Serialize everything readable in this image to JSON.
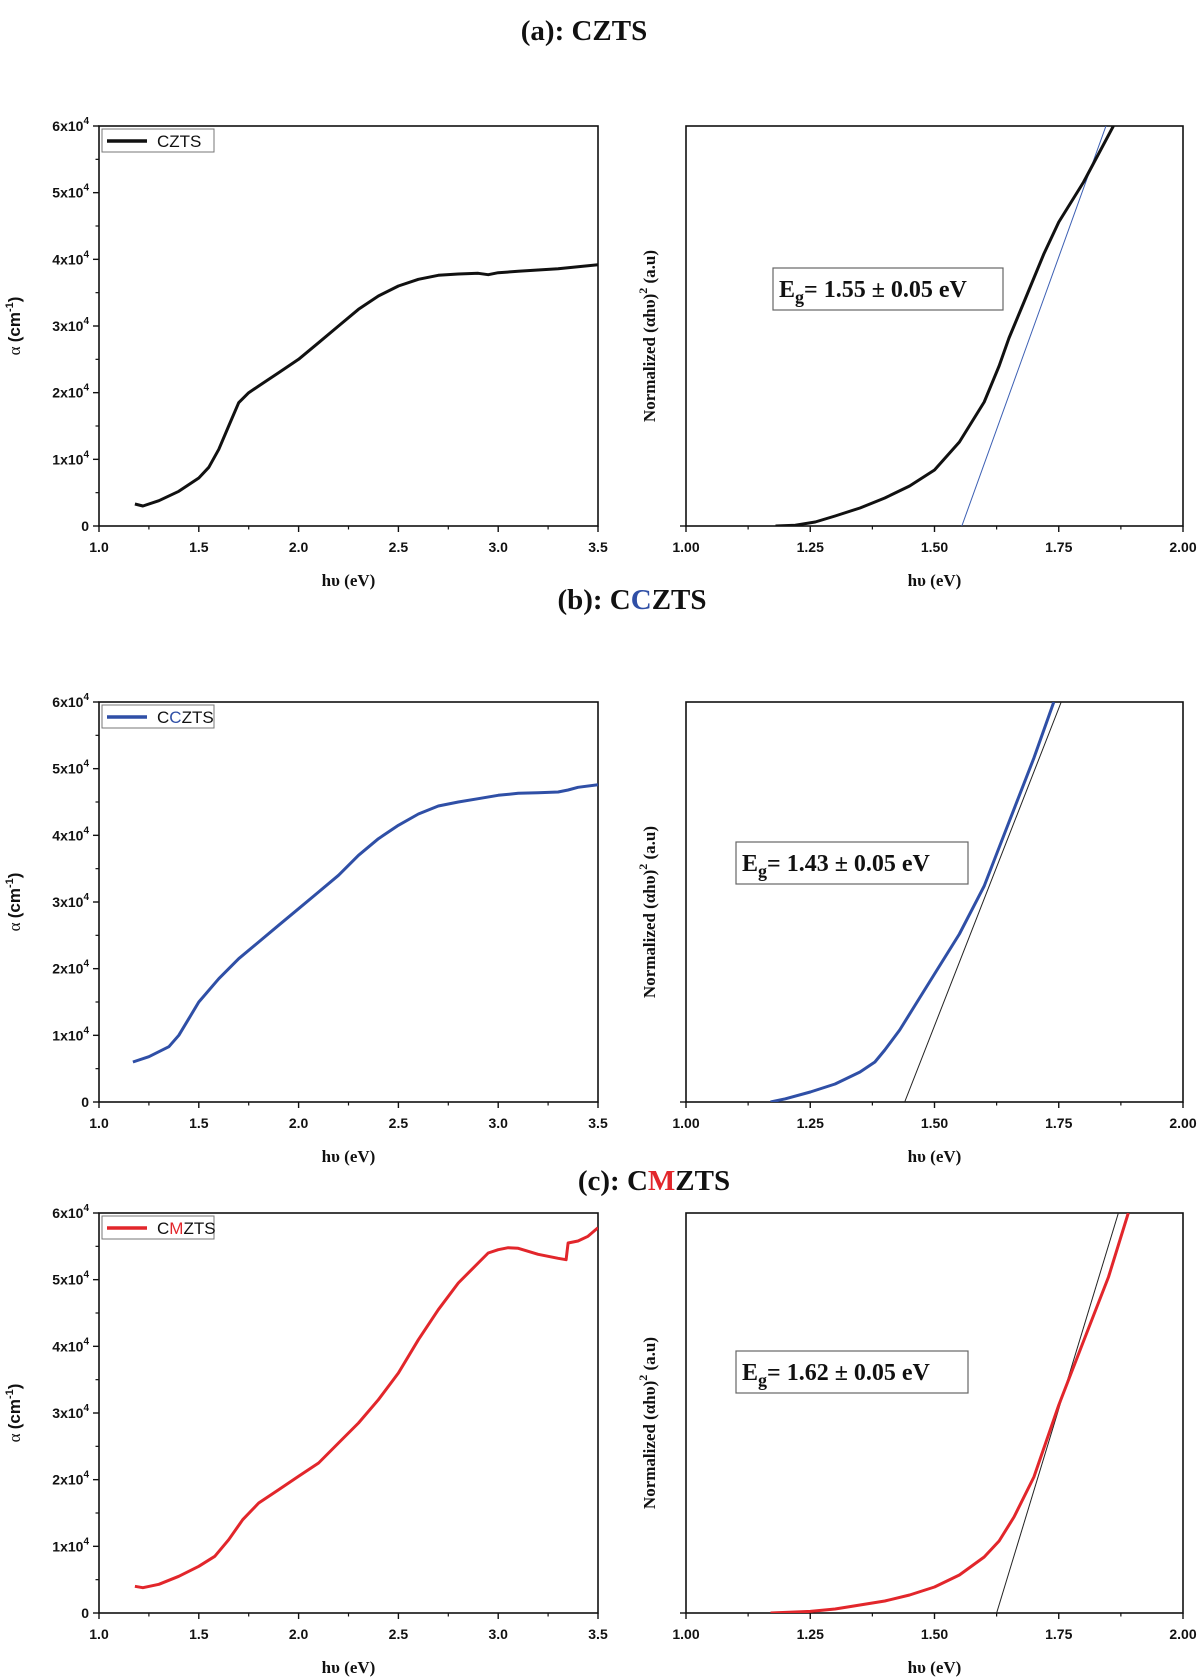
{
  "colors": {
    "a": "#111111",
    "b": "#2f4fa6",
    "c": "#e2262b",
    "axis": "#111111"
  },
  "panels": [
    {
      "title_prefix": "(a): C",
      "title_highlight": "",
      "title_suffix": "ZTS",
      "legend_prefix": "C",
      "legend_highlight": "",
      "legend_suffix": "ZTS",
      "eg_main": "E",
      "eg_sub": "g",
      "eg_value": "= 1.55 ± 0.05 eV"
    },
    {
      "title_prefix": "(b): C",
      "title_highlight": "C",
      "title_suffix": "ZTS",
      "legend_prefix": "C",
      "legend_highlight": "C",
      "legend_suffix": "ZTS",
      "eg_main": "E",
      "eg_sub": "g",
      "eg_value": "= 1.43 ± 0.05 eV"
    },
    {
      "title_prefix": "(c): C",
      "title_highlight": "M",
      "title_suffix": "ZTS",
      "legend_prefix": "C",
      "legend_highlight": "M",
      "legend_suffix": "ZTS",
      "eg_main": "E",
      "eg_sub": "g",
      "eg_value": "= 1.62 ± 0.05 eV"
    }
  ],
  "axis_labels": {
    "left_x": "hυ (eV)",
    "left_y_sym": "α",
    "left_y_unit": "(cm",
    "left_y_exp": "-1",
    "left_y_close": ")",
    "right_x": "hυ (eV)",
    "right_y": "Normalized (αhυ)",
    "right_y_exp": "2",
    "right_y_unit": "(a.u)"
  },
  "chart_data": [
    {
      "type": "line",
      "panel": "a-absorption",
      "xlim": [
        1.0,
        3.5
      ],
      "ylim": [
        0,
        60000
      ],
      "x_ticks": [
        "1.0",
        "1.5",
        "2.0",
        "2.5",
        "3.0",
        "3.5"
      ],
      "y_ticks": [
        "0",
        "1x10",
        "2x10",
        "3x10",
        "4x10",
        "5x10",
        "6x10"
      ],
      "y_tick_exp": "4",
      "legend": "top-left",
      "series": [
        {
          "name": "CZTS",
          "x": [
            1.18,
            1.22,
            1.3,
            1.4,
            1.5,
            1.55,
            1.6,
            1.65,
            1.7,
            1.75,
            1.8,
            1.9,
            2.0,
            2.1,
            2.2,
            2.3,
            2.4,
            2.5,
            2.6,
            2.7,
            2.8,
            2.9,
            2.95,
            3.0,
            3.1,
            3.2,
            3.3,
            3.4,
            3.5
          ],
          "y": [
            3300,
            3000,
            3800,
            5200,
            7200,
            8800,
            11500,
            15000,
            18500,
            20000,
            21000,
            23000,
            25000,
            27500,
            30000,
            32500,
            34500,
            36000,
            37000,
            37600,
            37800,
            37900,
            37700,
            38000,
            38200,
            38400,
            38600,
            38900,
            39200
          ]
        }
      ]
    },
    {
      "type": "line",
      "panel": "a-tauc",
      "xlim": [
        1.0,
        2.0
      ],
      "ylim": [
        0,
        1
      ],
      "x_ticks": [
        "1.00",
        "1.25",
        "1.50",
        "1.75",
        "2.00"
      ],
      "series": [
        {
          "name": "CZTS",
          "x": [
            1.18,
            1.22,
            1.26,
            1.3,
            1.35,
            1.4,
            1.45,
            1.5,
            1.55,
            1.6,
            1.63,
            1.65,
            1.68,
            1.7,
            1.72,
            1.75,
            1.78,
            1.8,
            1.83,
            1.86
          ],
          "y": [
            0,
            0.002,
            0.01,
            0.025,
            0.045,
            0.07,
            0.1,
            0.14,
            0.21,
            0.31,
            0.4,
            0.47,
            0.56,
            0.62,
            0.68,
            0.76,
            0.82,
            0.86,
            0.93,
            1.0
          ]
        }
      ],
      "fit_line": {
        "x": [
          1.555,
          1.845
        ],
        "y": [
          0,
          1.0
        ]
      }
    },
    {
      "type": "line",
      "panel": "b-absorption",
      "xlim": [
        1.0,
        3.5
      ],
      "ylim": [
        0,
        60000
      ],
      "x_ticks": [
        "1.0",
        "1.5",
        "2.0",
        "2.5",
        "3.0",
        "3.5"
      ],
      "y_ticks": [
        "0",
        "1x10",
        "2x10",
        "3x10",
        "4x10",
        "5x10",
        "6x10"
      ],
      "y_tick_exp": "4",
      "legend": "top-left",
      "series": [
        {
          "name": "CCZTS",
          "x": [
            1.17,
            1.25,
            1.35,
            1.4,
            1.45,
            1.5,
            1.6,
            1.7,
            1.8,
            1.9,
            2.0,
            2.1,
            2.2,
            2.3,
            2.4,
            2.5,
            2.6,
            2.7,
            2.8,
            2.9,
            3.0,
            3.1,
            3.2,
            3.3,
            3.35,
            3.4,
            3.5
          ],
          "y": [
            6000,
            6800,
            8300,
            10000,
            12500,
            15000,
            18500,
            21500,
            24000,
            26500,
            29000,
            31500,
            34000,
            37000,
            39500,
            41500,
            43200,
            44400,
            45000,
            45500,
            46000,
            46300,
            46400,
            46500,
            46800,
            47200,
            47600
          ]
        }
      ]
    },
    {
      "type": "line",
      "panel": "b-tauc",
      "xlim": [
        1.0,
        2.0
      ],
      "ylim": [
        0,
        1
      ],
      "x_ticks": [
        "1.00",
        "1.25",
        "1.50",
        "1.75",
        "2.00"
      ],
      "series": [
        {
          "name": "CCZTS",
          "x": [
            1.17,
            1.2,
            1.25,
            1.3,
            1.35,
            1.38,
            1.4,
            1.43,
            1.46,
            1.5,
            1.55,
            1.6,
            1.65,
            1.7,
            1.74
          ],
          "y": [
            0,
            0.008,
            0.025,
            0.045,
            0.075,
            0.1,
            0.13,
            0.18,
            0.24,
            0.32,
            0.42,
            0.54,
            0.7,
            0.86,
            1.0
          ]
        }
      ],
      "fit_line": {
        "x": [
          1.44,
          1.755
        ],
        "y": [
          0,
          1.0
        ]
      }
    },
    {
      "type": "line",
      "panel": "c-absorption",
      "xlim": [
        1.0,
        3.5
      ],
      "ylim": [
        0,
        60000
      ],
      "x_ticks": [
        "1.0",
        "1.5",
        "2.0",
        "2.5",
        "3.0",
        "3.5"
      ],
      "y_ticks": [
        "0",
        "1x10",
        "2x10",
        "3x10",
        "4x10",
        "5x10",
        "6x10"
      ],
      "y_tick_exp": "4",
      "legend": "top-left",
      "series": [
        {
          "name": "CMZTS",
          "x": [
            1.18,
            1.22,
            1.3,
            1.4,
            1.5,
            1.58,
            1.65,
            1.72,
            1.8,
            1.9,
            2.0,
            2.1,
            2.2,
            2.3,
            2.4,
            2.5,
            2.6,
            2.7,
            2.8,
            2.9,
            2.95,
            3.0,
            3.05,
            3.1,
            3.2,
            3.3,
            3.34,
            3.35,
            3.4,
            3.45,
            3.5
          ],
          "y": [
            4000,
            3800,
            4300,
            5500,
            7000,
            8500,
            11000,
            14000,
            16500,
            18500,
            20500,
            22500,
            25500,
            28500,
            32000,
            36000,
            41000,
            45500,
            49500,
            52500,
            54000,
            54500,
            54800,
            54700,
            53800,
            53200,
            53000,
            55500,
            55800,
            56500,
            57800
          ]
        }
      ]
    },
    {
      "type": "line",
      "panel": "c-tauc",
      "xlim": [
        1.0,
        2.0
      ],
      "ylim": [
        0,
        1
      ],
      "x_ticks": [
        "1.00",
        "1.25",
        "1.50",
        "1.75",
        "2.00"
      ],
      "series": [
        {
          "name": "CMZTS",
          "x": [
            1.17,
            1.25,
            1.3,
            1.35,
            1.4,
            1.45,
            1.5,
            1.55,
            1.6,
            1.63,
            1.66,
            1.7,
            1.75,
            1.8,
            1.85,
            1.89
          ],
          "y": [
            0,
            0.004,
            0.01,
            0.02,
            0.03,
            0.045,
            0.065,
            0.095,
            0.14,
            0.18,
            0.24,
            0.34,
            0.52,
            0.68,
            0.84,
            1.0
          ]
        }
      ],
      "fit_line": {
        "x": [
          1.625,
          1.87
        ],
        "y": [
          0,
          1.0
        ]
      }
    }
  ]
}
